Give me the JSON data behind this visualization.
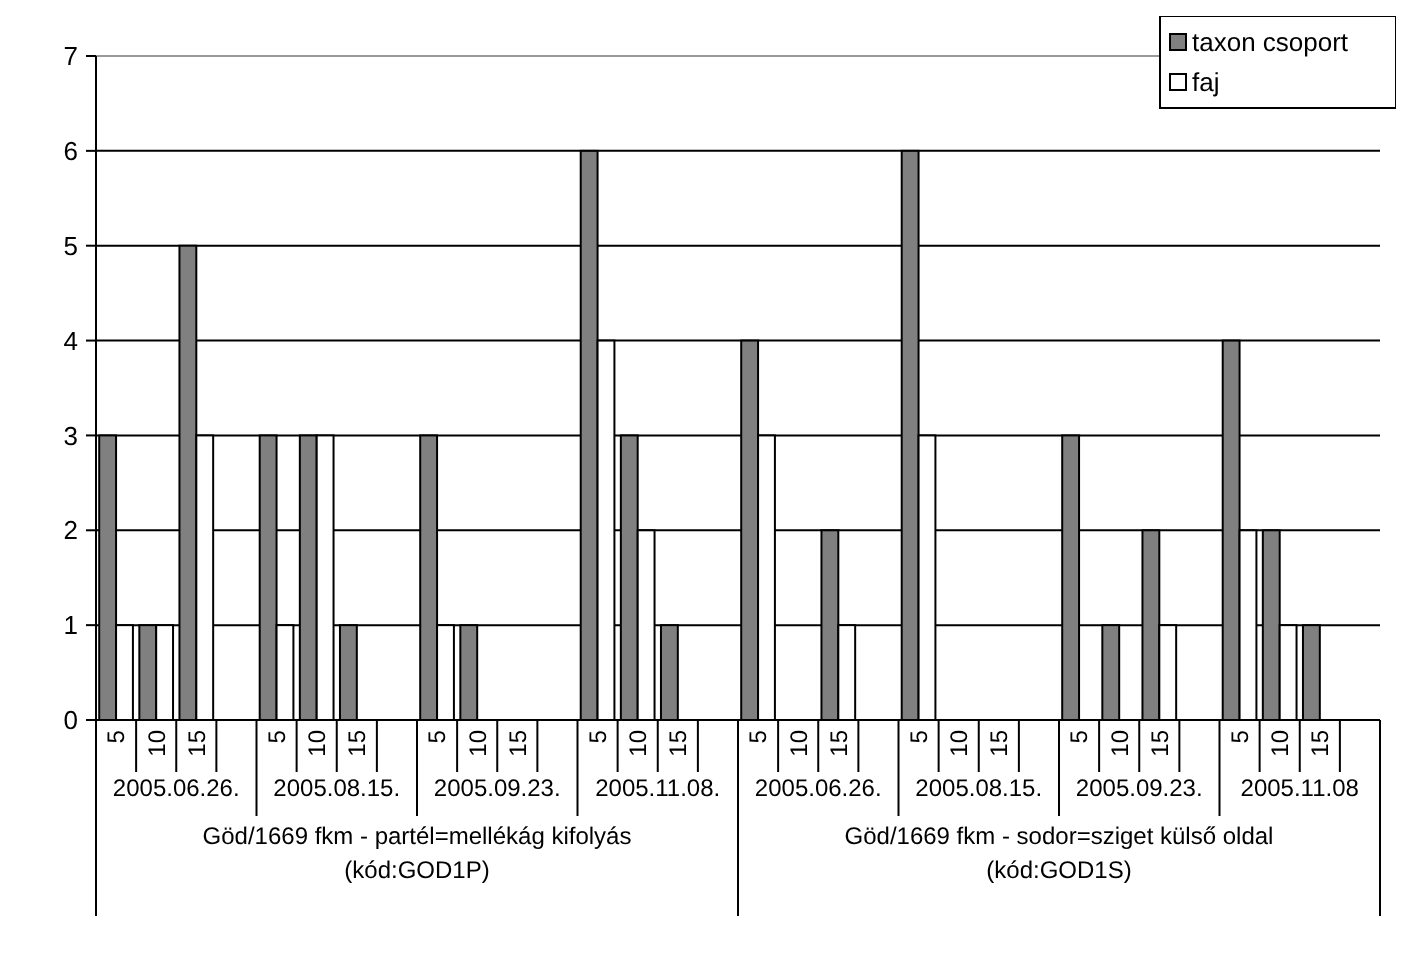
{
  "chart_data": {
    "type": "bar",
    "categories": [
      "5",
      "10",
      "15",
      null,
      "5",
      "10",
      "15",
      null,
      "5",
      "10",
      "15",
      null,
      "5",
      "10",
      "15",
      null,
      "5",
      "10",
      "15",
      null,
      "5",
      "10",
      "15",
      null,
      "5",
      "10",
      "15",
      null,
      "5",
      "10",
      "15",
      null
    ],
    "series": [
      {
        "name": "taxon csoport",
        "color": "#808080",
        "values": [
          3,
          1,
          5,
          null,
          3,
          3,
          1,
          null,
          3,
          1,
          0,
          null,
          6,
          3,
          1,
          null,
          4,
          0,
          2,
          null,
          6,
          0,
          0,
          null,
          3,
          1,
          2,
          null,
          4,
          2,
          1,
          null
        ]
      },
      {
        "name": "faj",
        "color": "#ffffff",
        "values": [
          1,
          1,
          3,
          null,
          1,
          3,
          0,
          null,
          1,
          0,
          0,
          null,
          4,
          2,
          0,
          null,
          3,
          0,
          1,
          null,
          3,
          0,
          0,
          null,
          0,
          0,
          1,
          null,
          2,
          1,
          0,
          null
        ]
      }
    ],
    "ylim": [
      0,
      7
    ],
    "yticks": [
      0,
      1,
      2,
      3,
      4,
      5,
      6,
      7
    ],
    "grid": "y",
    "legend": "top right",
    "annotations": [
      "2005.06.26.",
      "2005.08.15.",
      "2005.09.23.",
      "2005.11.08.",
      "2005.06.26.",
      "2005.08.15.",
      "2005.09.23.",
      "2005.11.08",
      "Göd/1669 fkm - partél=mellékág kifolyás\n(kód:GOD1P)",
      "Göd/1669 fkm - sodor=sziget külső oldal\n(kód:GOD1S)"
    ]
  }
}
